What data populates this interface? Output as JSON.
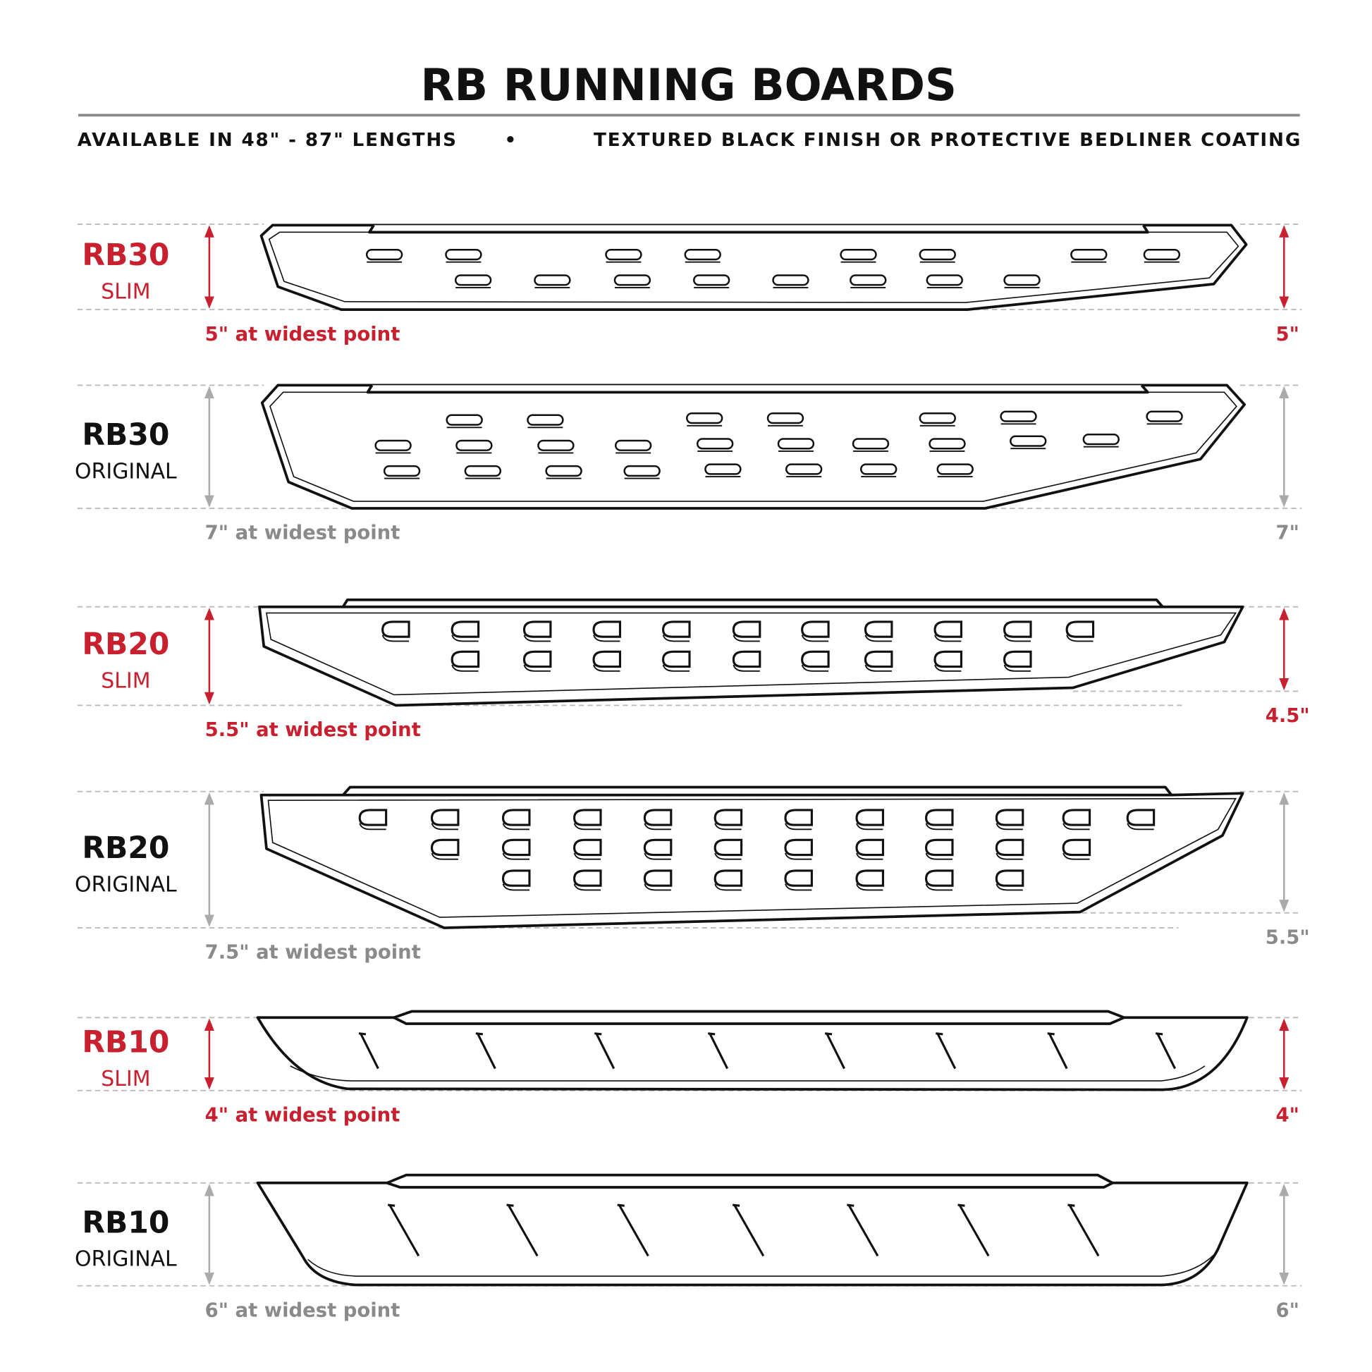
{
  "header": {
    "title": "RB RUNNING BOARDS",
    "subtitle_left": "AVAILABLE IN 48\" - 87\" LENGTHS",
    "separator": "•",
    "subtitle_right": "TEXTURED BLACK FINISH OR PROTECTIVE BEDLINER COATING"
  },
  "colors": {
    "accent_red": "#c8202f",
    "gray": "#8a8a8a",
    "text": "#111111"
  },
  "boards": [
    {
      "name": "RB30",
      "variant": "SLIM",
      "widest": "5\" at widest point",
      "right_dim": "5\"",
      "highlight": true
    },
    {
      "name": "RB30",
      "variant": "ORIGINAL",
      "widest": "7\" at widest point",
      "right_dim": "7\"",
      "highlight": false
    },
    {
      "name": "RB20",
      "variant": "SLIM",
      "widest": "5.5\" at widest point",
      "right_dim": "4.5\"",
      "highlight": true
    },
    {
      "name": "RB20",
      "variant": "ORIGINAL",
      "widest": "7.5\" at widest point",
      "right_dim": "5.5\"",
      "highlight": false
    },
    {
      "name": "RB10",
      "variant": "SLIM",
      "widest": "4\" at widest point",
      "right_dim": "4\"",
      "highlight": true
    },
    {
      "name": "RB10",
      "variant": "ORIGINAL",
      "widest": "6\" at widest point",
      "right_dim": "6\"",
      "highlight": false
    }
  ]
}
